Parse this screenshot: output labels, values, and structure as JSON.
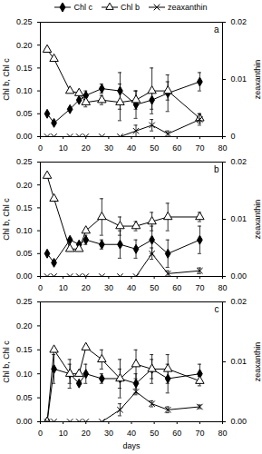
{
  "chart_data": [
    {
      "type": "line",
      "title": "a",
      "legend": "top",
      "x": [
        3,
        6,
        13,
        17,
        20,
        27,
        35,
        42,
        49,
        56,
        70
      ],
      "xlim": [
        0,
        80
      ],
      "xticks": [
        0,
        10,
        20,
        30,
        40,
        50,
        60,
        70,
        80
      ],
      "ylim": [
        0,
        0.25
      ],
      "yticks": [
        {
          "value": 0,
          "label": "0.00"
        },
        {
          "value": 0.05,
          "label": "0.05"
        },
        {
          "value": 0.1,
          "label": "0.10"
        },
        {
          "value": 0.15,
          "label": "0.15"
        },
        {
          "value": 0.2,
          "label": "0.20"
        },
        {
          "value": 0.25,
          "label": "0.25"
        }
      ],
      "y2lim": [
        0,
        0.02
      ],
      "y2ticks": [
        0,
        0.01,
        0.02
      ],
      "ylabel": "Chl b, Chl c",
      "y2label": "zeaxanthin",
      "series": [
        {
          "name": "Chl c",
          "color": "#000000",
          "marker": "diamond",
          "values": [
            0.05,
            0.03,
            0.06,
            0.08,
            0.09,
            0.105,
            0.1,
            0.07,
            0.08,
            0.095,
            0.12
          ],
          "errors": [
            null,
            null,
            null,
            null,
            0.01,
            0.01,
            0.04,
            0.03,
            0.02,
            0.04,
            0.02
          ]
        },
        {
          "name": "Chl b",
          "color": "#000000",
          "marker": "open-triangle",
          "values": [
            0.19,
            0.17,
            0.1,
            0.095,
            0.075,
            0.08,
            0.075,
            0.08,
            0.1,
            0.1,
            0.04
          ],
          "errors": [
            null,
            null,
            null,
            null,
            0.01,
            0.01,
            0.04,
            0.02,
            0.05,
            0.02,
            0.01
          ]
        },
        {
          "name": "zeaxanthin",
          "color": "#000000",
          "marker": "x",
          "axis": "y2",
          "values": [
            0,
            0,
            0,
            0,
            0,
            0,
            0,
            0.001,
            0.002,
            0.0005,
            0.003
          ],
          "errors": [
            null,
            null,
            null,
            null,
            null,
            null,
            null,
            0.001,
            0.001,
            0.0005,
            0.001
          ]
        }
      ]
    },
    {
      "type": "line",
      "title": "b",
      "x": [
        3,
        6,
        13,
        17,
        20,
        27,
        35,
        42,
        49,
        56,
        70
      ],
      "xlim": [
        0,
        80
      ],
      "xticks": [
        0,
        10,
        20,
        30,
        40,
        50,
        60,
        70,
        80
      ],
      "ylim": [
        0,
        0.25
      ],
      "yticks": [
        {
          "value": 0,
          "label": "0.00"
        },
        {
          "value": 0.05,
          "label": "0.05"
        },
        {
          "value": 0.1,
          "label": "0.10"
        },
        {
          "value": 0.15,
          "label": "0.15"
        },
        {
          "value": 0.2,
          "label": "0.20"
        },
        {
          "value": 0.25,
          "label": "0.25"
        }
      ],
      "y2lim": [
        0,
        0.02
      ],
      "y2ticks": [
        {
          "value": 0,
          "label": "0.00"
        },
        0.01,
        0.02
      ],
      "ylabel": "Chl b, Chl c",
      "y2label": "zeaxanthin",
      "series": [
        {
          "name": "Chl c",
          "color": "#000000",
          "marker": "diamond",
          "values": [
            0.05,
            0.03,
            0.08,
            0.07,
            0.08,
            0.07,
            0.07,
            0.06,
            0.08,
            0.05,
            0.08
          ],
          "errors": [
            null,
            null,
            null,
            null,
            0.01,
            0.01,
            0.03,
            0.02,
            0.03,
            0.03,
            0.03
          ]
        },
        {
          "name": "Chl b",
          "color": "#000000",
          "marker": "open-triangle",
          "values": [
            0.22,
            0.17,
            0.06,
            0.06,
            0.1,
            0.13,
            0.11,
            0.11,
            0.12,
            0.13,
            0.13
          ],
          "errors": [
            null,
            null,
            null,
            null,
            null,
            0.04,
            0.02,
            0.01,
            0.02,
            0.03,
            0.01
          ]
        },
        {
          "name": "zeaxanthin",
          "color": "#000000",
          "marker": "x",
          "axis": "y2",
          "values": [
            0,
            0,
            0,
            0,
            0,
            0,
            0,
            0,
            0.004,
            0.0005,
            0.001
          ],
          "errors": [
            null,
            null,
            null,
            null,
            null,
            null,
            null,
            null,
            0.001,
            0.0005,
            0.0005
          ]
        }
      ]
    },
    {
      "type": "line",
      "title": "c",
      "xlabel": "days",
      "x": [
        3,
        6,
        13,
        17,
        20,
        27,
        35,
        42,
        49,
        56,
        70
      ],
      "xlim": [
        0,
        80
      ],
      "xticks": [
        0,
        10,
        20,
        30,
        40,
        50,
        60,
        70,
        80
      ],
      "ylim": [
        0,
        0.25
      ],
      "yticks": [
        {
          "value": 0,
          "label": "0.00"
        },
        {
          "value": 0.05,
          "label": "0.05"
        },
        {
          "value": 0.1,
          "label": "0.10"
        },
        {
          "value": 0.15,
          "label": "0.15"
        },
        {
          "value": 0.2,
          "label": "0.20"
        },
        {
          "value": 0.25,
          "label": "0.25"
        }
      ],
      "y2lim": [
        0,
        0.02
      ],
      "y2ticks": [
        {
          "value": 0,
          "label": "0.00"
        },
        0.01,
        0.02
      ],
      "ylabel": "Chl b, Chl c",
      "y2label": "zeaxanthin",
      "series": [
        {
          "name": "Chl c",
          "color": "#000000",
          "marker": "diamond",
          "values": [
            0,
            0.11,
            0.1,
            0.08,
            0.1,
            0.09,
            0.09,
            0.08,
            0.11,
            0.09,
            0.1
          ],
          "errors": [
            null,
            0.03,
            0.02,
            null,
            0.02,
            0.01,
            0.02,
            0.02,
            0.03,
            0.03,
            0.02
          ]
        },
        {
          "name": "Chl b",
          "color": "#000000",
          "marker": "open-triangle",
          "values": [
            0,
            0.15,
            0.1,
            0.1,
            0.155,
            0.13,
            0.09,
            0.12,
            0.11,
            0.11,
            0.085
          ],
          "errors": [
            null,
            null,
            0.03,
            null,
            null,
            0.02,
            0.04,
            0.03,
            0.02,
            0.03,
            0.01
          ]
        },
        {
          "name": "zeaxanthin",
          "color": "#000000",
          "marker": "x",
          "axis": "y2",
          "values": [
            0,
            0,
            0,
            0,
            0,
            0,
            0.002,
            0.005,
            0.003,
            0.002,
            0.0025
          ],
          "errors": [
            null,
            null,
            null,
            null,
            null,
            null,
            0.001,
            0.0005,
            0.0005,
            0.0005,
            0.0003
          ]
        }
      ]
    }
  ]
}
